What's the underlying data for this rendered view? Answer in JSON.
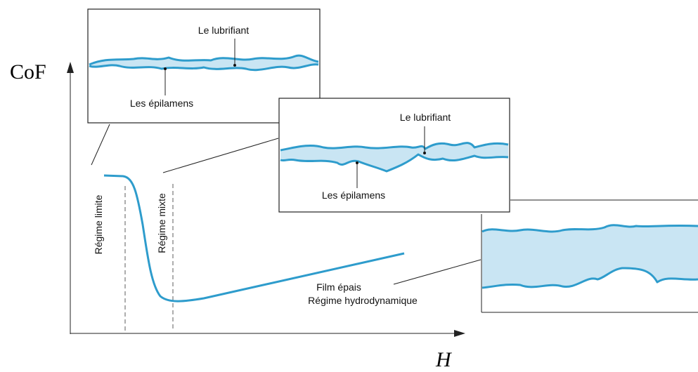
{
  "axes": {
    "y_label": "CoF",
    "x_label": "H"
  },
  "regimes": [
    {
      "label": "Régime limite"
    },
    {
      "label": "Régime mixte"
    },
    {
      "label": "Film épais"
    },
    {
      "label": "Régime hydrodynamique"
    }
  ],
  "insets": [
    {
      "lubricant": "Le lubrifiant",
      "epilamens": "Les épilamens"
    },
    {
      "lubricant": "Le lubrifiant",
      "epilamens": "Les épilamens"
    },
    {}
  ]
}
